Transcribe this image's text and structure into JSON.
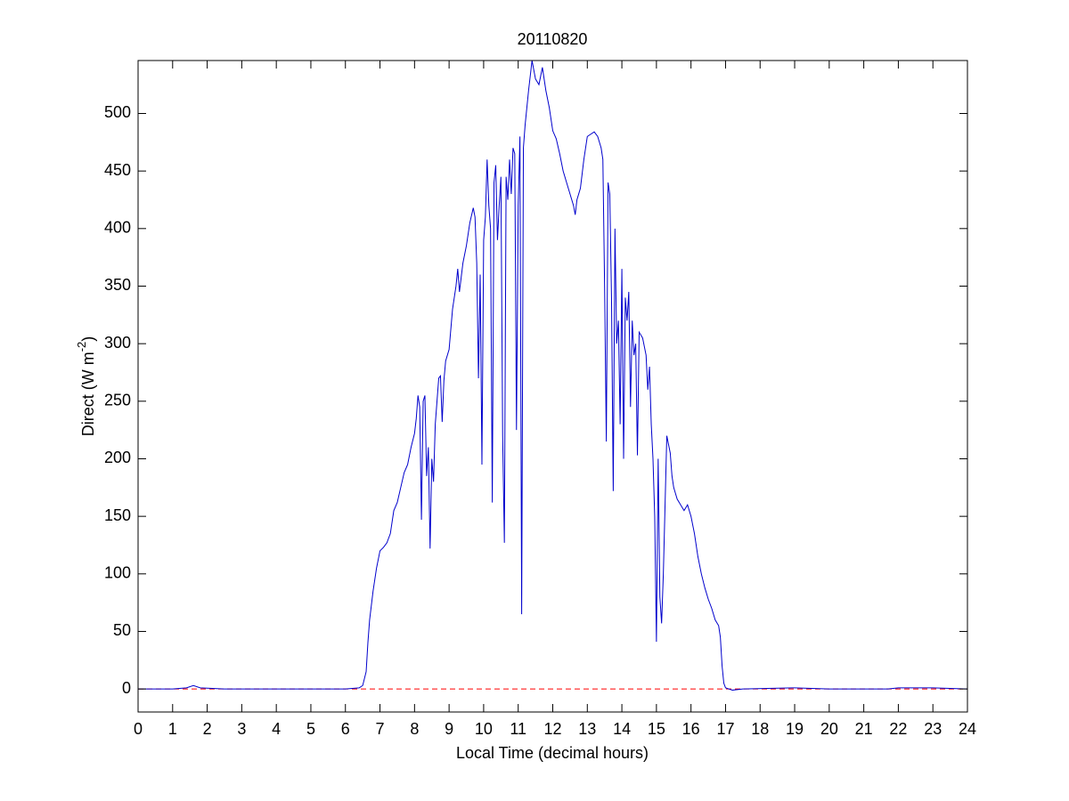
{
  "chart_data": {
    "type": "line",
    "title": "20110820",
    "xlabel": "Local Time (decimal hours)",
    "ylabel": {
      "text": "Direct (W m",
      "superscript": "-2",
      "suffix": ")"
    },
    "x": [
      0,
      1.0,
      1.4,
      1.6,
      1.8,
      2.5,
      6.0,
      6.4,
      6.5,
      6.6,
      6.65,
      6.7,
      6.8,
      6.9,
      7.0,
      7.1,
      7.2,
      7.3,
      7.4,
      7.5,
      7.6,
      7.7,
      7.8,
      7.9,
      8.0,
      8.05,
      8.1,
      8.15,
      8.2,
      8.25,
      8.3,
      8.35,
      8.4,
      8.45,
      8.5,
      8.55,
      8.6,
      8.7,
      8.75,
      8.8,
      8.85,
      8.9,
      9.0,
      9.1,
      9.2,
      9.25,
      9.3,
      9.4,
      9.5,
      9.6,
      9.7,
      9.75,
      9.8,
      9.85,
      9.9,
      9.95,
      10.0,
      10.05,
      10.1,
      10.15,
      10.2,
      10.25,
      10.3,
      10.35,
      10.4,
      10.45,
      10.5,
      10.55,
      10.6,
      10.65,
      10.7,
      10.75,
      10.8,
      10.85,
      10.9,
      10.95,
      11.0,
      11.05,
      11.1,
      11.15,
      11.2,
      11.3,
      11.4,
      11.5,
      11.6,
      11.7,
      11.8,
      11.9,
      12.0,
      12.1,
      12.2,
      12.3,
      12.4,
      12.5,
      12.6,
      12.65,
      12.7,
      12.8,
      12.9,
      13.0,
      13.1,
      13.2,
      13.3,
      13.4,
      13.45,
      13.5,
      13.55,
      13.6,
      13.65,
      13.7,
      13.75,
      13.8,
      13.85,
      13.9,
      13.95,
      14.0,
      14.05,
      14.1,
      14.15,
      14.2,
      14.25,
      14.3,
      14.35,
      14.4,
      14.45,
      14.5,
      14.6,
      14.7,
      14.75,
      14.8,
      14.85,
      14.9,
      14.95,
      15.0,
      15.05,
      15.1,
      15.15,
      15.2,
      15.3,
      15.4,
      15.45,
      15.5,
      15.6,
      15.7,
      15.8,
      15.9,
      16.0,
      16.1,
      16.2,
      16.3,
      16.4,
      16.5,
      16.6,
      16.7,
      16.8,
      16.85,
      16.9,
      16.95,
      17.0,
      17.2,
      17.5,
      19,
      20,
      21.7,
      22,
      23,
      24
    ],
    "series": [
      {
        "color": "#0000cc",
        "values": [
          0,
          0,
          1,
          3,
          1,
          0,
          0,
          1,
          3,
          15,
          40,
          60,
          85,
          105,
          120,
          123,
          127,
          135,
          155,
          162,
          175,
          188,
          195,
          210,
          222,
          235,
          255,
          245,
          147,
          250,
          255,
          185,
          210,
          122,
          200,
          180,
          230,
          270,
          272,
          232,
          268,
          285,
          295,
          330,
          350,
          365,
          345,
          370,
          385,
          405,
          418,
          410,
          370,
          270,
          360,
          195,
          390,
          410,
          460,
          420,
          400,
          162,
          440,
          455,
          390,
          420,
          445,
          220,
          127,
          445,
          425,
          460,
          430,
          470,
          465,
          225,
          420,
          480,
          65,
          470,
          490,
          520,
          546,
          530,
          525,
          540,
          520,
          505,
          485,
          478,
          465,
          450,
          440,
          430,
          420,
          412,
          425,
          435,
          460,
          480,
          482,
          484,
          480,
          470,
          460,
          350,
          215,
          440,
          430,
          340,
          172,
          400,
          300,
          320,
          230,
          365,
          200,
          340,
          320,
          345,
          245,
          320,
          290,
          300,
          203,
          310,
          305,
          290,
          260,
          280,
          230,
          200,
          150,
          41,
          200,
          80,
          57,
          100,
          220,
          205,
          185,
          175,
          165,
          160,
          155,
          160,
          150,
          135,
          115,
          100,
          88,
          78,
          70,
          60,
          55,
          45,
          20,
          5,
          1,
          -1,
          0,
          1,
          0,
          0,
          1,
          1,
          0
        ]
      }
    ],
    "reference_line": {
      "value": 0,
      "color": "#ff0000",
      "style": "dashed"
    },
    "xlim": [
      0,
      24
    ],
    "xticks": [
      0,
      1,
      2,
      3,
      4,
      5,
      6,
      7,
      8,
      9,
      10,
      11,
      12,
      13,
      14,
      15,
      16,
      17,
      18,
      19,
      20,
      21,
      22,
      23,
      24
    ],
    "ylim": [
      -20,
      546
    ],
    "yticks": [
      0,
      50,
      100,
      150,
      200,
      250,
      300,
      350,
      400,
      450,
      500
    ]
  }
}
